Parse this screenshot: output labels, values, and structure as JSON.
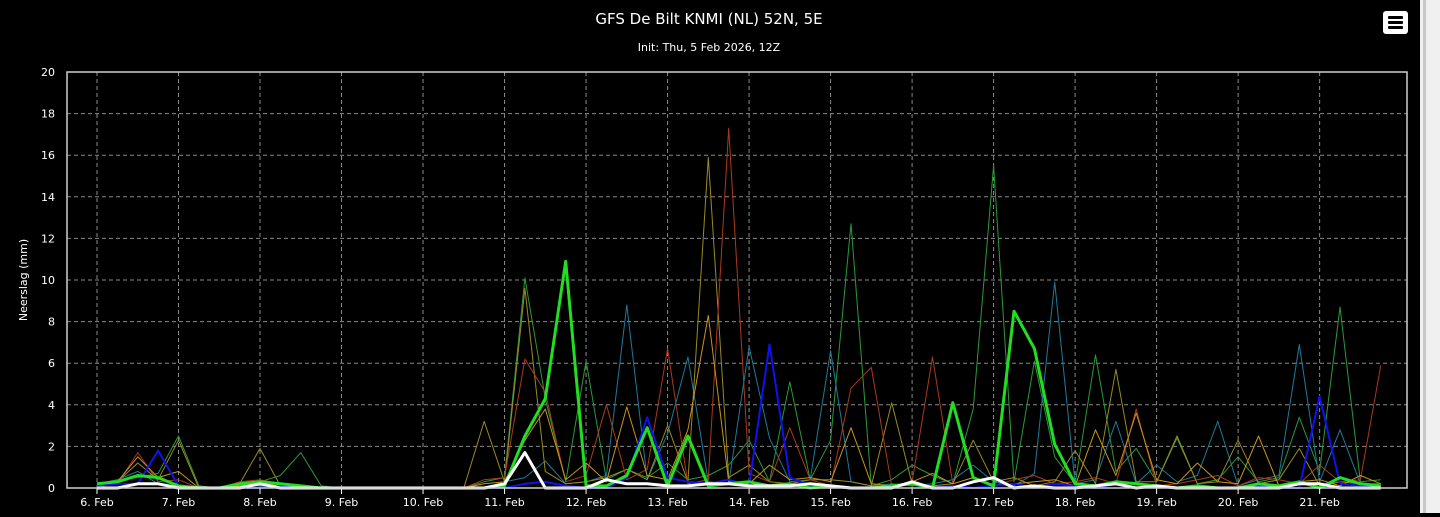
{
  "chart_data": {
    "type": "line",
    "title": "GFS De Bilt KNMI (NL) 52N, 5E",
    "subtitle": "Init: Thu, 5 Feb 2026, 12Z",
    "xlabel": "",
    "ylabel": "Neerslag (mm)",
    "ylim": [
      0,
      20
    ],
    "yticks": [
      "0",
      "2",
      "4",
      "6",
      "8",
      "10",
      "12",
      "14",
      "16",
      "18",
      "20"
    ],
    "xlim": [
      0,
      15.9
    ],
    "xtick_labels": [
      "6. Feb",
      "7. Feb",
      "8. Feb",
      "9. Feb",
      "10. Feb",
      "11. Feb",
      "12. Feb",
      "13. Feb",
      "14. Feb",
      "15. Feb",
      "16. Feb",
      "17. Feb",
      "18. Feb",
      "19. Feb",
      "20. Feb",
      "21. Feb"
    ],
    "grid": true,
    "background": "#000000",
    "x": [
      0,
      0.25,
      0.5,
      0.75,
      1,
      1.25,
      1.5,
      1.75,
      2,
      2.25,
      2.5,
      2.75,
      3,
      3.25,
      3.5,
      3.75,
      4,
      4.25,
      4.5,
      4.75,
      5,
      5.25,
      5.5,
      5.75,
      6,
      6.25,
      6.5,
      6.75,
      7,
      7.25,
      7.5,
      7.75,
      8,
      8.25,
      8.5,
      8.75,
      9,
      9.25,
      9.5,
      9.75,
      10,
      10.25,
      10.5,
      10.75,
      11,
      11.25,
      11.5,
      11.75,
      12,
      12.25,
      12.5,
      12.75,
      13,
      13.25,
      13.5,
      13.75,
      14,
      14.25,
      14.5,
      14.75,
      15,
      15.25,
      15.5,
      15.75
    ],
    "series": [
      {
        "color": "#22dd22",
        "width": 3,
        "values": [
          0.2,
          0.3,
          0.6,
          0.5,
          0.1,
          0,
          0,
          0.2,
          0.3,
          0.2,
          0.1,
          0,
          0,
          0,
          0,
          0,
          0,
          0,
          0,
          0,
          0.1,
          2.5,
          4.3,
          10.9,
          0.1,
          0.1,
          0.6,
          2.9,
          0.1,
          2.5,
          0.1,
          0.2,
          0.3,
          0.1,
          0.2,
          0,
          0.1,
          0,
          0,
          0.1,
          0.2,
          0,
          4.1,
          0.5,
          0.1,
          8.5,
          6.7,
          2.1,
          0.2,
          0.1,
          0.3,
          0.2,
          0.1,
          0,
          0.1,
          0,
          0,
          0.2,
          0.1,
          0.3,
          0,
          0.5,
          0.2,
          0.1
        ]
      },
      {
        "color": "#ffffff",
        "width": 3,
        "values": [
          0,
          0,
          0.2,
          0.2,
          0,
          0,
          0,
          0,
          0.2,
          0,
          0,
          0,
          0,
          0,
          0,
          0,
          0,
          0,
          0,
          0,
          0.2,
          1.7,
          0,
          0,
          0,
          0.4,
          0.2,
          0.2,
          0.1,
          0.1,
          0.2,
          0.2,
          0.1,
          0.1,
          0.1,
          0.2,
          0.1,
          0,
          0,
          0,
          0.3,
          0,
          0,
          0.3,
          0.5,
          0,
          0.1,
          0,
          0,
          0.1,
          0.2,
          0,
          0.1,
          0,
          0,
          0,
          0,
          0,
          0,
          0.2,
          0.2,
          0,
          0,
          0
        ]
      },
      {
        "color": "#1111ee",
        "width": 2,
        "values": [
          0.1,
          0.2,
          0.2,
          1.8,
          0.1,
          0,
          0,
          0,
          0,
          0.1,
          0,
          0,
          0,
          0,
          0,
          0,
          0,
          0,
          0,
          0,
          0,
          0.2,
          0.3,
          0.1,
          0,
          0,
          0.5,
          3.4,
          0.5,
          0.3,
          0.2,
          0.4,
          0.1,
          6.9,
          0.5,
          0.1,
          0.1,
          0,
          0,
          0,
          0.3,
          0,
          0.1,
          0,
          0.1,
          0.2,
          0,
          0.2,
          0.1,
          0,
          0.2,
          0,
          0.1,
          0,
          0,
          0,
          0,
          0.1,
          0,
          0,
          4.4,
          0.2,
          0.1,
          0
        ]
      },
      {
        "color": "#2a9a3a",
        "width": 1,
        "values": [
          0.2,
          0.4,
          0.5,
          0.7,
          2.5,
          0.1,
          0,
          0.1,
          0.3,
          0.6,
          1.7,
          0.1,
          0,
          0,
          0,
          0,
          0,
          0,
          0,
          0.3,
          0.5,
          10.1,
          4.3,
          0.3,
          6.1,
          0.4,
          0.9,
          0.5,
          1.2,
          0.4,
          0.6,
          1.1,
          2.3,
          0.3,
          5.1,
          0.4,
          2.3,
          12.7,
          0.1,
          0.4,
          1.1,
          0.6,
          0.2,
          3.8,
          15.5,
          0.3,
          6.1,
          1.5,
          0.2,
          6.4,
          0.8,
          1.9,
          0.3,
          2.4,
          0.2,
          0.4,
          1.5,
          0.3,
          0.5,
          3.4,
          0.8,
          8.7,
          0.3,
          0.4
        ]
      },
      {
        "color": "#1f7a9a",
        "width": 1,
        "values": [
          0.1,
          0.4,
          0.8,
          0.2,
          0.1,
          0,
          0,
          0.1,
          0.1,
          0,
          0.1,
          0,
          0,
          0,
          0,
          0,
          0,
          0,
          0,
          0,
          0.3,
          0.5,
          1.3,
          0.2,
          0.3,
          0.6,
          8.8,
          0.4,
          2.6,
          6.3,
          0.3,
          0.2,
          6.8,
          2.4,
          0.3,
          0.4,
          6.6,
          0.3,
          0.1,
          0.2,
          0.1,
          0.2,
          0.4,
          1.1,
          0.3,
          0.1,
          0.7,
          9.9,
          0.2,
          0.4,
          3.2,
          0.2,
          1.1,
          0.3,
          0.6,
          3.2,
          0.1,
          0.4,
          0.6,
          6.9,
          0.3,
          2.8,
          0.2,
          0.2
        ]
      },
      {
        "color": "#9a8a22",
        "width": 1,
        "values": [
          0,
          0.3,
          1.2,
          0.4,
          2.3,
          0,
          0,
          0.2,
          1.9,
          0.1,
          0,
          0,
          0,
          0,
          0,
          0,
          0,
          0,
          0,
          3.2,
          0.3,
          9.6,
          0.8,
          0.2,
          0.3,
          0.5,
          0.9,
          0.4,
          3.0,
          0.3,
          15.9,
          0.5,
          1.1,
          0.3,
          0.2,
          0.4,
          0.4,
          0.3,
          0.1,
          4.1,
          0.2,
          0.1,
          0.2,
          2.3,
          0.3,
          0.5,
          0.1,
          0.3,
          1.8,
          0.2,
          5.7,
          0.3,
          0.3,
          2.5,
          0.2,
          0.3,
          2.3,
          0.2,
          0.4,
          1.9,
          0.1,
          0.3,
          0.2,
          0.1
        ]
      },
      {
        "color": "#aa3a1a",
        "width": 1,
        "values": [
          0.1,
          0.2,
          1.7,
          0.3,
          0.4,
          0,
          0,
          0.3,
          0.4,
          0.2,
          0,
          0,
          0,
          0,
          0,
          0,
          0,
          0,
          0,
          0.4,
          0.5,
          6.2,
          4.6,
          0.3,
          0.6,
          4.0,
          0.4,
          0.9,
          6.7,
          0.2,
          0.4,
          17.3,
          0.7,
          0.3,
          2.9,
          0.4,
          0.1,
          4.8,
          5.8,
          0.1,
          0.3,
          6.3,
          0.2,
          0.5,
          0.1,
          0.4,
          0.6,
          0.2,
          0.3,
          0.5,
          0.2,
          3.8,
          0.1,
          0.2,
          0.4,
          0.6,
          0.1,
          0.5,
          0.4,
          0.2,
          1.1,
          0.3,
          0.4,
          5.9
        ]
      },
      {
        "color": "#c8941c",
        "width": 1,
        "values": [
          0.1,
          0.3,
          1.5,
          0.5,
          0.8,
          0,
          0,
          0.1,
          0.2,
          0.1,
          0,
          0,
          0,
          0,
          0,
          0,
          0,
          0,
          0,
          0.2,
          0.3,
          2.3,
          3.8,
          0.4,
          1.2,
          0.3,
          3.9,
          0.6,
          0.4,
          2.8,
          8.3,
          0.3,
          0.2,
          1.1,
          0.4,
          0.5,
          0.3,
          2.9,
          0.2,
          0.1,
          0.3,
          0.7,
          0.2,
          0.5,
          0.1,
          0.2,
          0.3,
          0.4,
          0.1,
          2.8,
          0.6,
          3.6,
          0.4,
          0.2,
          1.2,
          0.3,
          0.2,
          2.5,
          0.1,
          0.3,
          0.4,
          0.1,
          0.6,
          0.2
        ]
      }
    ]
  },
  "menu": {
    "icon": "hamburger-menu-icon"
  }
}
